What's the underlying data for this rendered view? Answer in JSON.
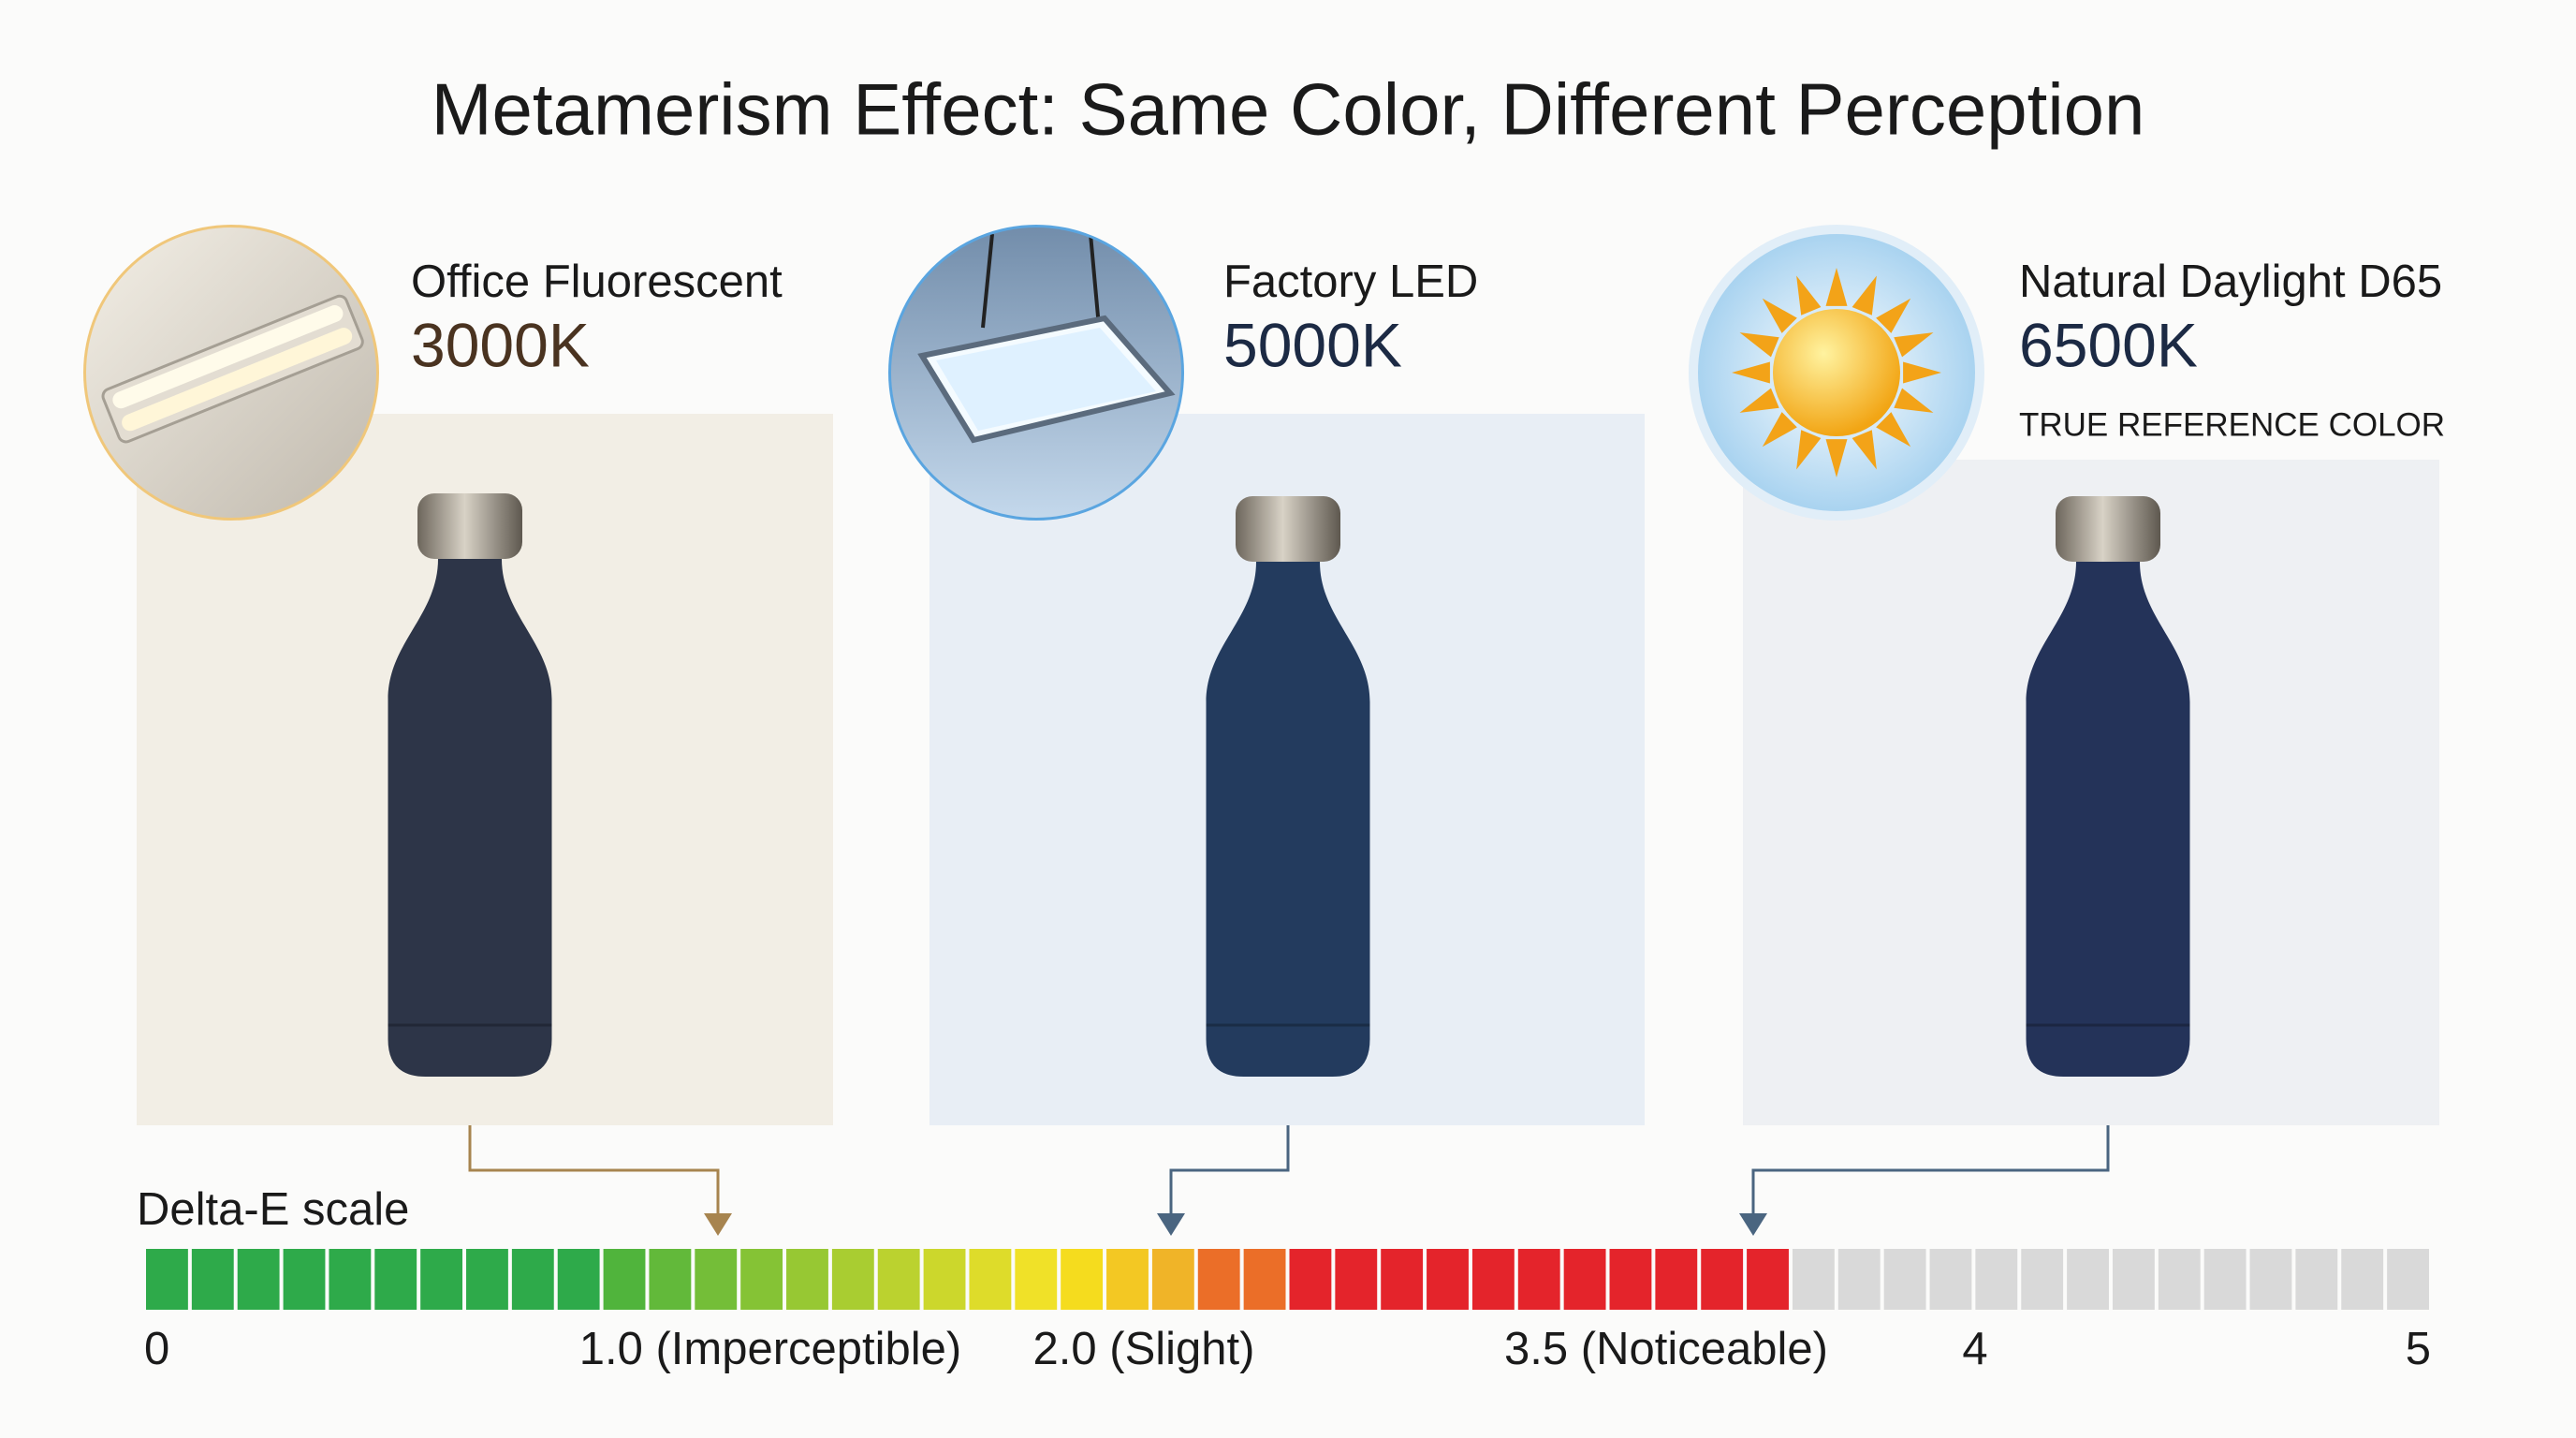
{
  "title": "Metamerism Effect: Same Color, Different Perception",
  "panels": [
    {
      "label": "Office Fluorescent",
      "temperature": "3000K"
    },
    {
      "label": "Factory LED",
      "temperature": "5000K"
    },
    {
      "label": "Natural Daylight D65",
      "temperature": "6500K",
      "note": "TRUE REFERENCE COLOR"
    }
  ],
  "scale": {
    "label": "Delta-E scale",
    "ticks": [
      "0",
      "1.0 (Imperceptible)",
      "2.0 (Slight)",
      "3.5 (Noticeable)",
      "4",
      "5"
    ]
  }
}
